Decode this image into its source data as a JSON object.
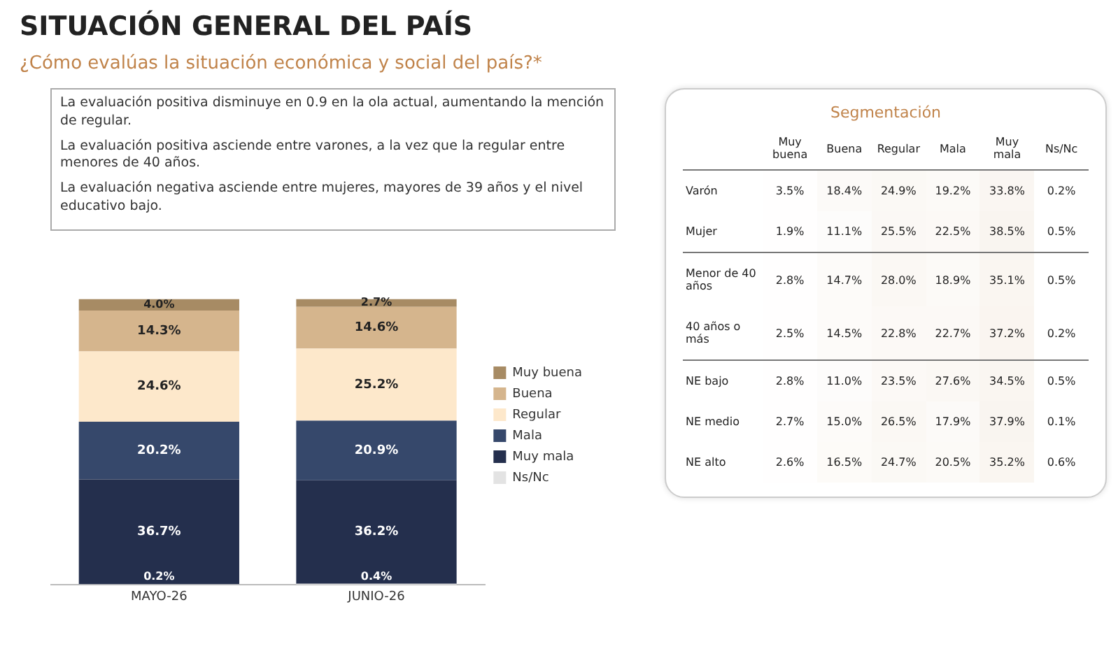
{
  "chart_data": [
    {
      "type": "bar",
      "title": "SITUACIÓN GENERAL DEL PAÍS",
      "subtitle": "¿Cómo evalúas la situación económica y social del país?*",
      "annotations": [
        "La evaluación positiva disminuye en 0.9 en la ola actual, aumentando la mención de regular.",
        "La evaluación positiva asciende entre varones, a la vez que la regular entre menores de 40 años.",
        "La evaluación negativa asciende entre mujeres, mayores de 39 años y el nivel educativo bajo."
      ],
      "categories": [
        "MAYO-26",
        "JUNIO-26"
      ],
      "stacked": true,
      "legend": "right",
      "grid": false,
      "tick_labels": "x",
      "series": [
        {
          "name": "Ns/Nc",
          "color": "#e3e3e3",
          "values": [
            0.2,
            0.4
          ],
          "value_labels": [
            "0.2%",
            "0.4%"
          ]
        },
        {
          "name": "Muy mala",
          "color": "#242f4d",
          "values": [
            36.7,
            36.2
          ],
          "value_labels": [
            "36.7%",
            "36.2%"
          ]
        },
        {
          "name": "Mala",
          "color": "#36486b",
          "values": [
            20.2,
            20.9
          ],
          "value_labels": [
            "20.2%",
            "20.9%"
          ]
        },
        {
          "name": "Regular",
          "color": "#fde8cb",
          "values": [
            24.6,
            25.2
          ],
          "value_labels": [
            "24.6%",
            "25.2%"
          ]
        },
        {
          "name": "Buena",
          "color": "#d5b58d",
          "values": [
            14.3,
            14.6
          ],
          "value_labels": [
            "14.3%",
            "14.6%"
          ]
        },
        {
          "name": "Muy buena",
          "color": "#a78b64",
          "values": [
            4.0,
            2.7
          ],
          "value_labels": [
            "4.0%",
            "2.7%"
          ]
        }
      ]
    },
    {
      "type": "heatmap",
      "title": "Segmentación",
      "categories": [
        "Muy buena",
        "Buena",
        "Regular",
        "Mala",
        "Muy mala",
        "Ns/Nc"
      ],
      "y_categories": [
        "Varón",
        "Mujer",
        "Menor de 40 años",
        "40 años o más",
        "NE bajo",
        "NE medio",
        "NE alto"
      ],
      "cells": [
        [
          3.5,
          18.4,
          24.9,
          19.2,
          33.8,
          0.2
        ],
        [
          1.9,
          11.1,
          25.5,
          22.5,
          38.5,
          0.5
        ],
        [
          2.8,
          14.7,
          28.0,
          18.9,
          35.1,
          0.5
        ],
        [
          2.5,
          14.5,
          22.8,
          22.7,
          37.2,
          0.2
        ],
        [
          2.8,
          11.0,
          23.5,
          27.6,
          34.5,
          0.5
        ],
        [
          2.7,
          15.0,
          26.5,
          17.9,
          37.9,
          0.1
        ],
        [
          2.6,
          16.5,
          24.7,
          20.5,
          35.2,
          0.6
        ]
      ],
      "cell_labels": [
        [
          "3.5%",
          "18.4%",
          "24.9%",
          "19.2%",
          "33.8%",
          "0.2%"
        ],
        [
          "1.9%",
          "11.1%",
          "25.5%",
          "22.5%",
          "38.5%",
          "0.5%"
        ],
        [
          "2.8%",
          "14.7%",
          "28.0%",
          "18.9%",
          "35.1%",
          "0.5%"
        ],
        [
          "2.5%",
          "14.5%",
          "22.8%",
          "22.7%",
          "37.2%",
          "0.2%"
        ],
        [
          "2.8%",
          "11.0%",
          "23.5%",
          "27.6%",
          "34.5%",
          "0.5%"
        ],
        [
          "2.7%",
          "15.0%",
          "26.5%",
          "17.9%",
          "37.9%",
          "0.1%"
        ],
        [
          "2.6%",
          "16.5%",
          "24.7%",
          "20.5%",
          "35.2%",
          "0.6%"
        ]
      ]
    }
  ]
}
